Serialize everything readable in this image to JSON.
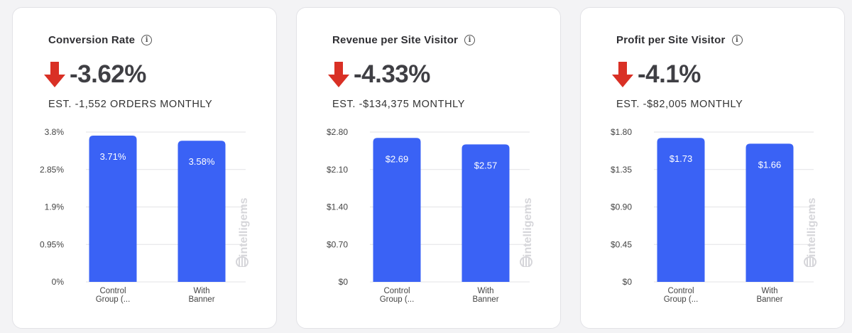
{
  "colors": {
    "bar": "#3a62f5",
    "arrow": "#d93025",
    "grid": "#e3e3e6"
  },
  "watermark": "intelligems",
  "cards": [
    {
      "title": "Conversion Rate",
      "delta": "-3.62%",
      "estimate": "EST. -1,552 ORDERS MONTHLY"
    },
    {
      "title": "Revenue per Site Visitor",
      "delta": "-4.33%",
      "estimate": "EST. -$134,375 MONTHLY"
    },
    {
      "title": "Profit per Site Visitor",
      "delta": "-4.1%",
      "estimate": "EST. -$82,005 MONTHLY"
    }
  ],
  "chart_data": [
    {
      "type": "bar",
      "categories": [
        [
          "Control",
          "Group (..."
        ],
        [
          "With",
          "Banner"
        ]
      ],
      "values": [
        3.71,
        3.58
      ],
      "value_labels": [
        "3.71%",
        "3.58%"
      ],
      "yticks": [
        0,
        0.95,
        1.9,
        2.85,
        3.8
      ],
      "ytick_labels": [
        "0%",
        "0.95%",
        "1.9%",
        "2.85%",
        "3.8%"
      ],
      "ylim": [
        0,
        3.8
      ],
      "grid": true
    },
    {
      "type": "bar",
      "categories": [
        [
          "Control",
          "Group (..."
        ],
        [
          "With",
          "Banner"
        ]
      ],
      "values": [
        2.69,
        2.57
      ],
      "value_labels": [
        "$2.69",
        "$2.57"
      ],
      "yticks": [
        0,
        0.7,
        1.4,
        2.1,
        2.8
      ],
      "ytick_labels": [
        "$0",
        "$0.70",
        "$1.40",
        "$2.10",
        "$2.80"
      ],
      "ylim": [
        0,
        2.8
      ],
      "grid": true
    },
    {
      "type": "bar",
      "categories": [
        [
          "Control",
          "Group (..."
        ],
        [
          "With",
          "Banner"
        ]
      ],
      "values": [
        1.73,
        1.66
      ],
      "value_labels": [
        "$1.73",
        "$1.66"
      ],
      "yticks": [
        0,
        0.45,
        0.9,
        1.35,
        1.8
      ],
      "ytick_labels": [
        "$0",
        "$0.45",
        "$0.90",
        "$1.35",
        "$1.80"
      ],
      "ylim": [
        0,
        1.8
      ],
      "grid": true
    }
  ]
}
